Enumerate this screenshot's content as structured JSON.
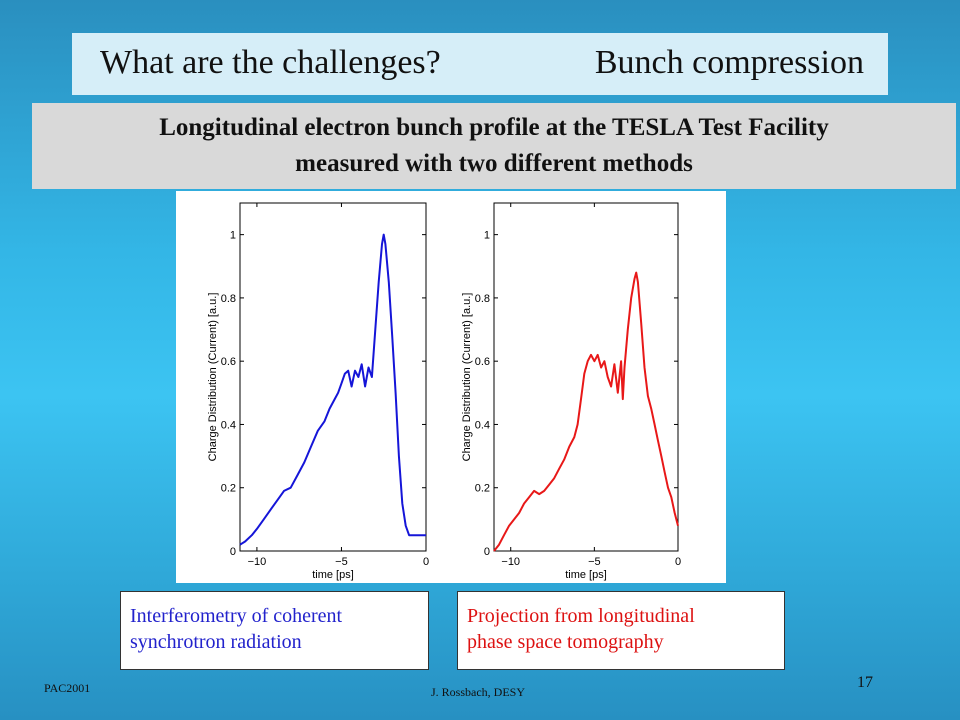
{
  "title": {
    "left": "What are the challenges?",
    "right": "Bunch compression"
  },
  "subtitle": {
    "line1": "Longitudinal electron bunch profile at the TESLA Test Facility",
    "line2": "measured with two different methods"
  },
  "captions": {
    "blue": {
      "line1": "Interferometry of coherent",
      "line2": "synchrotron radiation"
    },
    "red": {
      "line1": "Projection from longitudinal",
      "line2": "phase space tomography"
    }
  },
  "footer": {
    "left": "PAC2001",
    "center": "J. Rossbach, DESY",
    "page": "17"
  },
  "chart_data": [
    {
      "type": "line",
      "xlabel": "time [ps]",
      "ylabel": "Charge Distribution (Current) [a.u.]",
      "xlim": [
        -11,
        0
      ],
      "ylim": [
        0,
        1.1
      ],
      "xticks": [
        -10,
        -5,
        0
      ],
      "yticks": [
        0,
        0.2,
        0.4,
        0.6,
        0.8,
        1
      ],
      "color": "#1515d8",
      "series": [
        {
          "x": [
            -11,
            -10.7,
            -10.3,
            -10,
            -9.6,
            -9.2,
            -8.8,
            -8.4,
            -8,
            -7.6,
            -7.2,
            -6.8,
            -6.4,
            -6,
            -5.7,
            -5.4,
            -5.2,
            -5,
            -4.8,
            -4.6,
            -4.4,
            -4.2,
            -4,
            -3.8,
            -3.6,
            -3.4,
            -3.2,
            -3.0,
            -2.8,
            -2.6,
            -2.5,
            -2.4,
            -2.2,
            -2.0,
            -1.8,
            -1.6,
            -1.4,
            -1.2,
            -1.0,
            -0.8,
            -0.5,
            -0.2,
            0
          ],
          "y": [
            0.02,
            0.03,
            0.05,
            0.07,
            0.1,
            0.13,
            0.16,
            0.19,
            0.2,
            0.24,
            0.28,
            0.33,
            0.38,
            0.41,
            0.45,
            0.48,
            0.5,
            0.53,
            0.56,
            0.57,
            0.52,
            0.57,
            0.55,
            0.59,
            0.52,
            0.58,
            0.55,
            0.7,
            0.85,
            0.97,
            1.0,
            0.97,
            0.85,
            0.68,
            0.5,
            0.3,
            0.15,
            0.08,
            0.05,
            0.05,
            0.05,
            0.05,
            0.05
          ]
        }
      ]
    },
    {
      "type": "line",
      "xlabel": "time [ps]",
      "ylabel": "Charge Distribution (Current) [a.u.]",
      "xlim": [
        -11,
        0
      ],
      "ylim": [
        0,
        1.1
      ],
      "xticks": [
        -10,
        -5,
        0
      ],
      "yticks": [
        0,
        0.2,
        0.4,
        0.6,
        0.8,
        1
      ],
      "color": "#e81818",
      "series": [
        {
          "x": [
            -11,
            -10.7,
            -10.4,
            -10.1,
            -9.8,
            -9.5,
            -9.2,
            -8.9,
            -8.6,
            -8.3,
            -8.0,
            -7.7,
            -7.4,
            -7.1,
            -6.8,
            -6.5,
            -6.2,
            -6.0,
            -5.8,
            -5.6,
            -5.4,
            -5.2,
            -5.0,
            -4.8,
            -4.6,
            -4.4,
            -4.2,
            -4.0,
            -3.8,
            -3.6,
            -3.4,
            -3.3,
            -3.2,
            -3.0,
            -2.8,
            -2.6,
            -2.5,
            -2.4,
            -2.2,
            -2.0,
            -1.8,
            -1.6,
            -1.4,
            -1.2,
            -1.0,
            -0.8,
            -0.6,
            -0.4,
            -0.2,
            0
          ],
          "y": [
            0.0,
            0.02,
            0.05,
            0.08,
            0.1,
            0.12,
            0.15,
            0.17,
            0.19,
            0.18,
            0.19,
            0.21,
            0.23,
            0.26,
            0.29,
            0.33,
            0.36,
            0.4,
            0.48,
            0.56,
            0.6,
            0.62,
            0.6,
            0.62,
            0.58,
            0.6,
            0.55,
            0.52,
            0.59,
            0.5,
            0.6,
            0.48,
            0.58,
            0.7,
            0.8,
            0.86,
            0.88,
            0.85,
            0.72,
            0.58,
            0.49,
            0.45,
            0.4,
            0.35,
            0.3,
            0.25,
            0.2,
            0.17,
            0.12,
            0.08
          ]
        }
      ]
    }
  ]
}
